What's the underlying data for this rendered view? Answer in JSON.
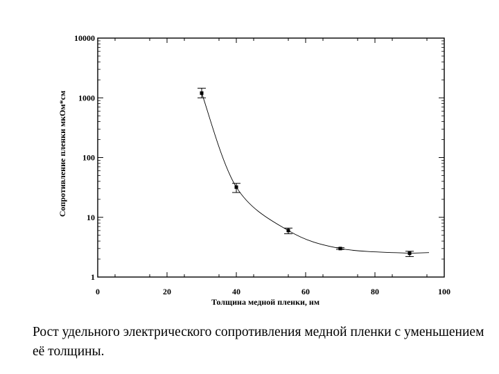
{
  "chart_data": {
    "type": "line",
    "xlabel": "Толщина медной пленки, нм",
    "ylabel": "Сопротивление пленки мкОм*см",
    "xlim": [
      0,
      100
    ],
    "ylim": [
      1,
      10000
    ],
    "yscale": "log",
    "xticks": [
      0,
      20,
      40,
      60,
      80,
      100
    ],
    "xtick_labels": [
      "0",
      "20",
      "40",
      "60",
      "80",
      "100"
    ],
    "yticks": [
      1,
      10,
      100,
      1000,
      10000
    ],
    "ytick_labels": [
      "1",
      "10",
      "100",
      "1000",
      "10000"
    ],
    "grid": false,
    "error_bars": true,
    "series": [
      {
        "points": [
          {
            "x": 30,
            "y": 1200,
            "err_low": 1000,
            "err_high": 1450
          },
          {
            "x": 40,
            "y": 32,
            "err_low": 26,
            "err_high": 37
          },
          {
            "x": 55,
            "y": 6,
            "err_low": 5.3,
            "err_high": 6.6
          },
          {
            "x": 70,
            "y": 3,
            "err_low": 2.9,
            "err_high": 3.1
          },
          {
            "x": 90,
            "y": 2.5,
            "err_low": 2.2,
            "err_high": 2.7
          }
        ]
      }
    ]
  },
  "caption": "Рост удельного электрического сопротивления медной пленки с уменьшением её толщины."
}
